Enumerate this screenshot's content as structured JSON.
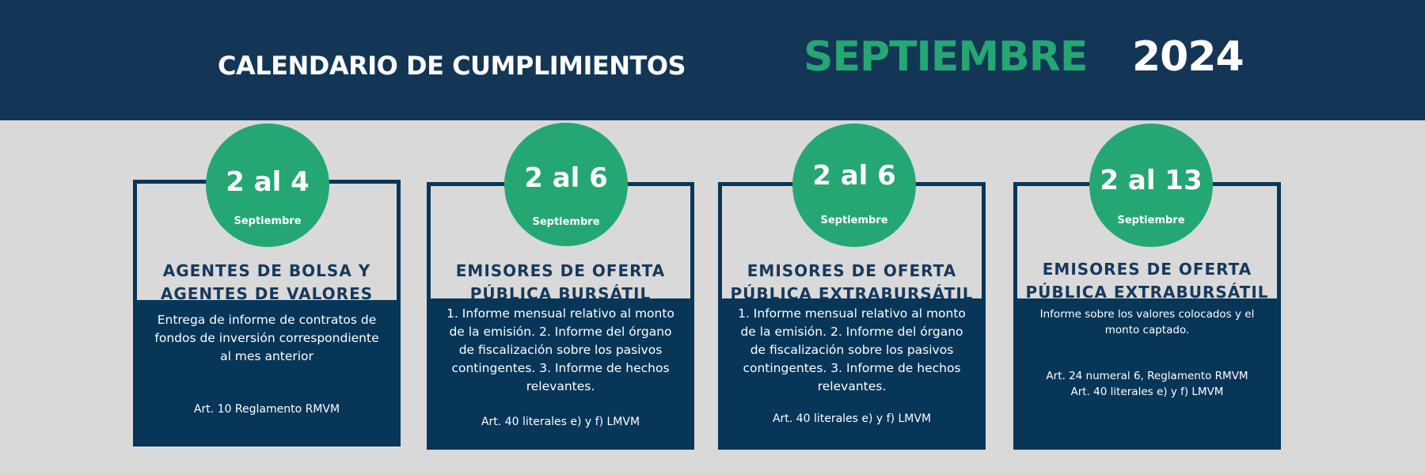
{
  "header": {
    "title": "CALENDARIO DE CUMPLIMIENTOS",
    "month": "SEPTIEMBRE",
    "year": "2024"
  },
  "colors": {
    "navy": "#133657",
    "green": "#25a773",
    "background": "#d9d9d9"
  },
  "cards": [
    {
      "range": "2 al 4",
      "month": "Septiembre",
      "title_line1": "AGENTES DE BOLSA Y",
      "title_line2": "AGENTES DE VALORES",
      "description": "Entrega de informe de contratos de fondos de inversión correspondiente al mes anterior",
      "reference": "Art. 10 Reglamento RMVM"
    },
    {
      "range": "2 al 6",
      "month": "Septiembre",
      "title_line1": "EMISORES DE OFERTA",
      "title_line2": "PÚBLICA BURSÁTIL",
      "description": "1. Informe mensual relativo al monto de la emisión. 2. Informe del órgano de fiscalización sobre los pasivos contingentes. 3. Informe de hechos relevantes.",
      "reference": "Art. 40 literales e) y f) LMVM"
    },
    {
      "range": "2 al 6",
      "month": "Septiembre",
      "title_line1": "EMISORES DE OFERTA",
      "title_line2": "PÚBLICA EXTRABURSÁTIL",
      "description": "1. Informe mensual relativo al monto de la emisión. 2. Informe del órgano de fiscalización sobre los pasivos contingentes. 3. Informe de hechos relevantes.",
      "reference": "Art. 40 literales e) y f) LMVM"
    },
    {
      "range": "2 al 13",
      "month": "Septiembre",
      "title_line1": "EMISORES DE OFERTA",
      "title_line2": "PÚBLICA EXTRABURSÁTIL",
      "description": "Informe sobre los valores colocados y el monto captado.",
      "reference_line1": "Art. 24 numeral 6, Reglamento RMVM",
      "reference_line2": "Art. 40 literales e) y f) LMVM"
    }
  ]
}
